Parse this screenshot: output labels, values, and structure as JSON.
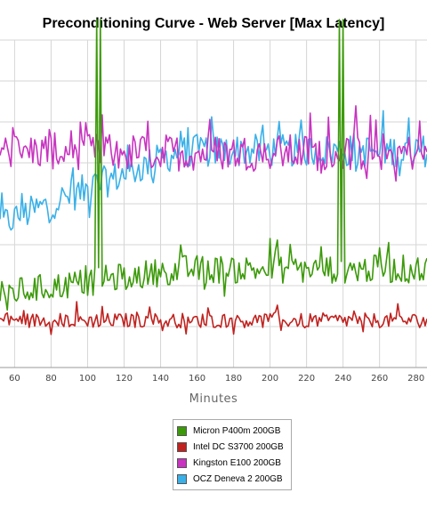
{
  "chart_data": {
    "type": "line",
    "title": "Preconditioning Curve - Web Server [Max Latency]",
    "xlabel": "Minutes",
    "ylabel": "",
    "x_ticks": [
      60,
      80,
      100,
      120,
      140,
      160,
      180,
      200,
      220,
      240,
      260,
      280
    ],
    "xlim": [
      52,
      286
    ],
    "ylim": [
      0,
      8
    ],
    "grid": true,
    "legend_position": "bottom-center",
    "series": [
      {
        "name": "Micron P400m 200GB",
        "color": "#3c9a0a",
        "base": 1.8,
        "trend": 0.6,
        "noise": 0.35,
        "spikes": [
          [
            105,
            8.5
          ],
          [
            107,
            8.5
          ],
          [
            238,
            8.5
          ],
          [
            240,
            8.5
          ]
        ]
      },
      {
        "name": "Intel DC S3700 200GB",
        "color": "#c0221f",
        "base": 1.15,
        "trend": 0.0,
        "noise": 0.18,
        "spikes": []
      },
      {
        "name": "Kingston E100 200GB",
        "color": "#c833c0",
        "base": 5.3,
        "trend": -0.05,
        "noise": 0.45,
        "spikes": []
      },
      {
        "name": "OCZ Deneva 2 200GB",
        "color": "#3ab0e8",
        "base": 3.5,
        "trend": 1.8,
        "noise": 0.4,
        "spikes": []
      }
    ]
  }
}
